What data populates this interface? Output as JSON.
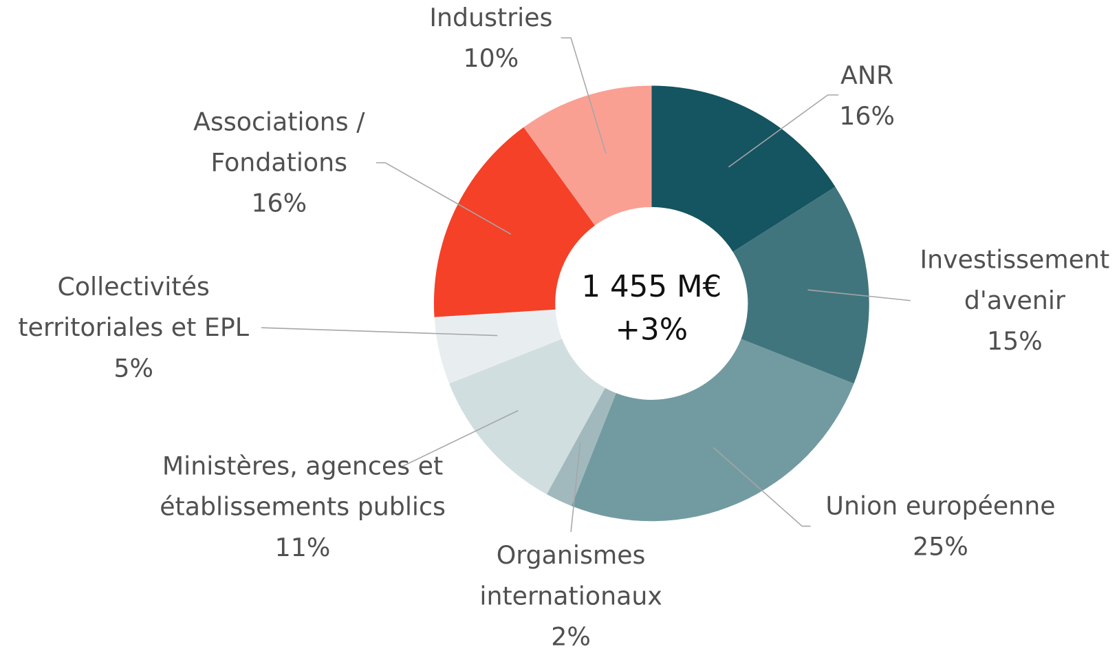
{
  "chart_data": {
    "type": "donut",
    "center_label": [
      "1 455 M€",
      "+3%"
    ],
    "categories": [
      "ANR",
      "Investissement\nd'avenir",
      "Union européenne",
      "Organismes\ninternationaux",
      "Ministères, agences et\nétablissements publics",
      "Collectivités\nterritoriales et EPL",
      "Associations /\nFondations",
      "Industries"
    ],
    "values": [
      16,
      15,
      25,
      2,
      11,
      5,
      16,
      10
    ],
    "value_labels": [
      "16%",
      "15%",
      "25%",
      "2%",
      "11%",
      "5%",
      "16%",
      "10%"
    ],
    "colors": [
      "#155461",
      "#41757e",
      "#729ba1",
      "#a1b9bd",
      "#d0dedf",
      "#e8eef0",
      "#f44128",
      "#f9a093"
    ]
  }
}
